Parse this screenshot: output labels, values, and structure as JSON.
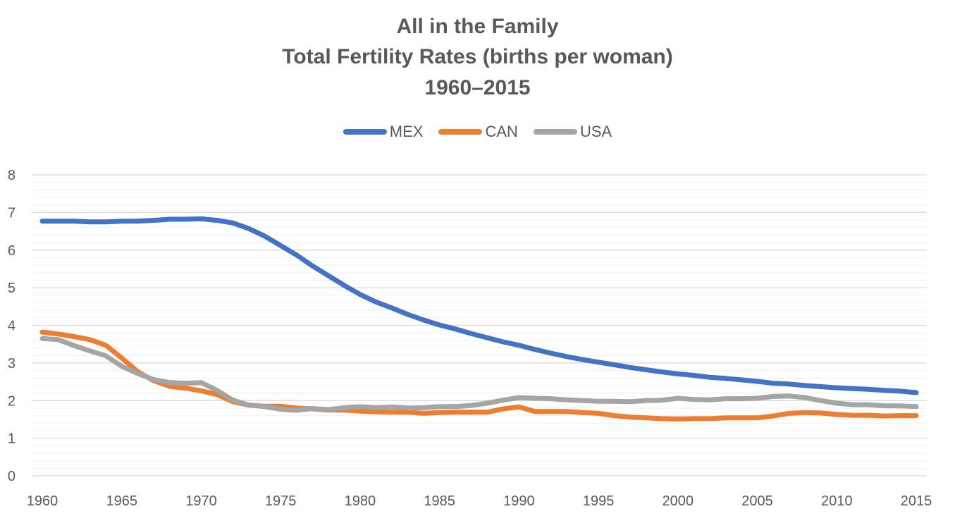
{
  "chart_data": {
    "type": "line",
    "title": [
      "All in the Family",
      "Total Fertility Rates (births per woman)",
      "1960–2015"
    ],
    "xlabel": "",
    "ylabel": "",
    "xlim": [
      1960,
      2015
    ],
    "ylim": [
      0,
      8
    ],
    "y_ticks": [
      0,
      1,
      2,
      3,
      4,
      5,
      6,
      7,
      8
    ],
    "x_ticks": [
      1960,
      1965,
      1970,
      1975,
      1980,
      1985,
      1990,
      1995,
      2000,
      2005,
      2010,
      2015
    ],
    "grid": true,
    "legend_position": "top",
    "x": [
      1960,
      1961,
      1962,
      1963,
      1964,
      1965,
      1966,
      1967,
      1968,
      1969,
      1970,
      1971,
      1972,
      1973,
      1974,
      1975,
      1976,
      1977,
      1978,
      1979,
      1980,
      1981,
      1982,
      1983,
      1984,
      1985,
      1986,
      1987,
      1988,
      1989,
      1990,
      1991,
      1992,
      1993,
      1994,
      1995,
      1996,
      1997,
      1998,
      1999,
      2000,
      2001,
      2002,
      2003,
      2004,
      2005,
      2006,
      2007,
      2008,
      2009,
      2010,
      2011,
      2012,
      2013,
      2014,
      2015
    ],
    "series": [
      {
        "name": "MEX",
        "color": "#4472C4",
        "values": [
          6.77,
          6.77,
          6.77,
          6.75,
          6.75,
          6.77,
          6.77,
          6.79,
          6.82,
          6.82,
          6.83,
          6.79,
          6.72,
          6.57,
          6.37,
          6.12,
          5.87,
          5.58,
          5.32,
          5.06,
          4.82,
          4.62,
          4.46,
          4.29,
          4.14,
          4.01,
          3.9,
          3.78,
          3.67,
          3.56,
          3.47,
          3.36,
          3.26,
          3.17,
          3.09,
          3.02,
          2.95,
          2.88,
          2.82,
          2.76,
          2.71,
          2.67,
          2.62,
          2.59,
          2.55,
          2.51,
          2.46,
          2.44,
          2.4,
          2.37,
          2.34,
          2.32,
          2.3,
          2.27,
          2.25,
          2.21
        ]
      },
      {
        "name": "CAN",
        "color": "#ED7D31",
        "values": [
          3.82,
          3.77,
          3.7,
          3.62,
          3.47,
          3.13,
          2.77,
          2.53,
          2.38,
          2.33,
          2.26,
          2.16,
          1.97,
          1.88,
          1.85,
          1.85,
          1.8,
          1.78,
          1.75,
          1.75,
          1.72,
          1.7,
          1.69,
          1.69,
          1.66,
          1.68,
          1.69,
          1.69,
          1.69,
          1.78,
          1.83,
          1.71,
          1.71,
          1.71,
          1.68,
          1.66,
          1.6,
          1.56,
          1.54,
          1.52,
          1.51,
          1.52,
          1.52,
          1.54,
          1.54,
          1.54,
          1.59,
          1.66,
          1.68,
          1.67,
          1.63,
          1.61,
          1.61,
          1.59,
          1.6,
          1.6
        ]
      },
      {
        "name": "USA",
        "color": "#A5A5A5",
        "values": [
          3.65,
          3.62,
          3.46,
          3.32,
          3.19,
          2.91,
          2.72,
          2.56,
          2.48,
          2.46,
          2.48,
          2.27,
          2.01,
          1.88,
          1.84,
          1.77,
          1.74,
          1.79,
          1.76,
          1.81,
          1.84,
          1.81,
          1.83,
          1.8,
          1.81,
          1.84,
          1.84,
          1.87,
          1.93,
          2.01,
          2.08,
          2.06,
          2.05,
          2.02,
          2.0,
          1.98,
          1.98,
          1.97,
          2.0,
          2.01,
          2.06,
          2.03,
          2.02,
          2.05,
          2.05,
          2.06,
          2.11,
          2.12,
          2.08,
          2.0,
          1.93,
          1.89,
          1.89,
          1.86,
          1.86,
          1.84
        ]
      }
    ]
  }
}
